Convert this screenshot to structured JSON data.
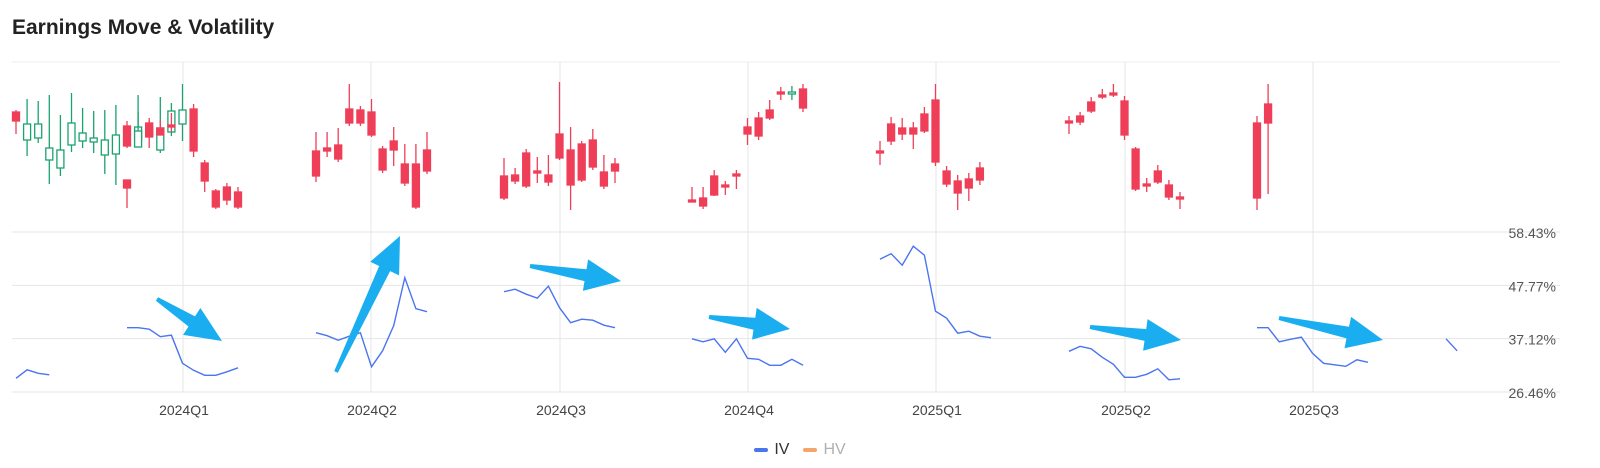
{
  "title": "Earnings Move & Volatility",
  "colors": {
    "up": "#1aa36f",
    "down": "#ef3e57",
    "iv": "#4a74f0",
    "hv": "#f3a56b",
    "arrow": "#1aaef0"
  },
  "legend": [
    {
      "label": "IV",
      "color": "#4a74f0",
      "active": true
    },
    {
      "label": "HV",
      "color": "#f3a56b",
      "active": false
    }
  ],
  "chart_data": {
    "type": "line",
    "title": "Earnings Move & Volatility",
    "quarters": [
      "2024Q1",
      "2024Q2",
      "2024Q3",
      "2024Q4",
      "2025Q1",
      "2025Q2",
      "2025Q3"
    ],
    "y_ticks": [
      "58.43%",
      "47.77%",
      "37.12%",
      "26.46%"
    ],
    "ylim": [
      26.46,
      58.43
    ],
    "series": [
      {
        "name": "IV",
        "segments": [
          [
            29.2,
            30.9,
            30.2,
            29.9
          ],
          [
            39.3,
            39.3,
            39.0,
            37.5,
            37.8,
            32.2,
            30.8,
            29.8,
            29.8,
            30.5,
            31.3
          ],
          [
            38.3,
            37.7,
            36.8,
            37.6,
            38.3,
            31.5,
            34.7,
            39.7,
            49.3,
            43.1,
            42.5
          ],
          [
            46.5,
            47.0,
            46.0,
            45.2,
            47.6,
            43.3,
            40.3,
            41.0,
            40.8,
            39.8,
            39.3
          ],
          [
            37.1,
            36.5,
            37.1,
            34.4,
            37.1,
            33.2,
            33.0,
            31.8,
            31.8,
            33.0,
            31.8
          ],
          [
            53.0,
            54.1,
            51.8,
            55.6,
            53.8,
            42.6,
            41.2,
            38.2,
            38.6,
            37.6,
            37.3
          ],
          [
            34.6,
            35.6,
            35.1,
            33.4,
            32.0,
            29.4,
            29.4,
            30.0,
            31.1,
            28.9,
            29.1
          ],
          [
            39.3,
            39.3,
            36.5,
            37.0,
            37.4,
            34.2,
            32.2,
            31.9,
            31.6,
            32.9,
            32.4
          ],
          [
            37.1,
            34.7
          ]
        ]
      }
    ],
    "candles": [
      [
        {
          "o": 112,
          "c": 121,
          "h": 110,
          "l": 134
        },
        {
          "o": 140,
          "c": 124,
          "h": 99,
          "l": 156
        },
        {
          "o": 138,
          "c": 124,
          "h": 101,
          "l": 143
        },
        {
          "o": 160,
          "c": 148,
          "h": 95,
          "l": 184
        },
        {
          "o": 168,
          "c": 150,
          "h": 115,
          "l": 176
        },
        {
          "o": 145,
          "c": 123,
          "h": 93,
          "l": 152
        },
        {
          "o": 141,
          "c": 133,
          "h": 108,
          "l": 148
        },
        {
          "o": 142,
          "c": 138,
          "h": 111,
          "l": 153
        },
        {
          "o": 155,
          "c": 140,
          "h": 110,
          "l": 174
        },
        {
          "o": 154,
          "c": 135,
          "h": 105,
          "l": 185
        },
        {
          "o": 180,
          "c": 188,
          "h": 182,
          "l": 208
        },
        {
          "o": 140,
          "c": 127,
          "h": 95,
          "l": 142
        },
        {
          "o": 127,
          "c": 137,
          "h": 118,
          "l": 148
        },
        {
          "o": 150,
          "c": 128,
          "h": 97,
          "l": 153
        },
        {
          "o": 132,
          "c": 111,
          "h": 103,
          "l": 136
        }
      ],
      [
        {
          "o": 126,
          "c": 146,
          "h": 121,
          "l": 148
        },
        {
          "o": 147,
          "c": 131,
          "h": 112,
          "l": 147
        },
        {
          "o": 123,
          "c": 135,
          "h": 120,
          "l": 137
        },
        {
          "o": 128,
          "c": 135,
          "h": 120,
          "l": 131
        },
        {
          "o": 125,
          "c": 127,
          "h": 113,
          "l": 132
        },
        {
          "o": 124,
          "c": 110,
          "h": 84,
          "l": 141
        },
        {
          "o": 109,
          "c": 151,
          "h": 104,
          "l": 157
        },
        {
          "o": 163,
          "c": 181,
          "h": 160,
          "l": 192
        },
        {
          "o": 191,
          "c": 207,
          "h": 189,
          "l": 209
        },
        {
          "o": 187,
          "c": 200,
          "h": 183,
          "l": 205
        },
        {
          "o": 192,
          "c": 207,
          "h": 187,
          "l": 209
        }
      ],
      [
        {
          "o": 151,
          "c": 176,
          "h": 132,
          "l": 182
        },
        {
          "o": 148,
          "c": 151,
          "h": 132,
          "l": 157
        },
        {
          "o": 145,
          "c": 159,
          "h": 128,
          "l": 162
        },
        {
          "o": 109,
          "c": 123,
          "h": 84,
          "l": 126
        },
        {
          "o": 110,
          "c": 123,
          "h": 106,
          "l": 126
        },
        {
          "o": 112,
          "c": 135,
          "h": 99,
          "l": 137
        },
        {
          "o": 149,
          "c": 170,
          "h": 146,
          "l": 173
        },
        {
          "o": 141,
          "c": 150,
          "h": 127,
          "l": 166
        },
        {
          "o": 164,
          "c": 183,
          "h": 144,
          "l": 186
        },
        {
          "o": 164,
          "c": 207,
          "h": 144,
          "l": 209
        },
        {
          "o": 150,
          "c": 171,
          "h": 132,
          "l": 174
        }
      ],
      [
        {
          "o": 176,
          "c": 198,
          "h": 158,
          "l": 200
        },
        {
          "o": 175,
          "c": 181,
          "h": 168,
          "l": 184
        },
        {
          "o": 153,
          "c": 186,
          "h": 149,
          "l": 188
        },
        {
          "o": 171,
          "c": 171,
          "h": 157,
          "l": 183
        },
        {
          "o": 175,
          "c": 182,
          "h": 155,
          "l": 186
        },
        {
          "o": 134,
          "c": 158,
          "h": 82,
          "l": 160
        },
        {
          "o": 150,
          "c": 185,
          "h": 127,
          "l": 210
        },
        {
          "o": 144,
          "c": 180,
          "h": 141,
          "l": 182
        },
        {
          "o": 140,
          "c": 167,
          "h": 129,
          "l": 170
        },
        {
          "o": 172,
          "c": 186,
          "h": 155,
          "l": 189
        },
        {
          "o": 164,
          "c": 171,
          "h": 158,
          "l": 183
        }
      ],
      [
        {
          "o": 200,
          "c": 200,
          "h": 187,
          "l": 202
        },
        {
          "o": 198,
          "c": 206,
          "h": 187,
          "l": 209
        },
        {
          "o": 176,
          "c": 195,
          "h": 170,
          "l": 196
        },
        {
          "o": 185,
          "c": 185,
          "h": 181,
          "l": 195
        },
        {
          "o": 174,
          "c": 174,
          "h": 170,
          "l": 189
        },
        {
          "o": 127,
          "c": 134,
          "h": 118,
          "l": 145
        },
        {
          "o": 118,
          "c": 136,
          "h": 112,
          "l": 140
        },
        {
          "o": 110,
          "c": 118,
          "h": 100,
          "l": 120
        },
        {
          "o": 92,
          "c": 92,
          "h": 87,
          "l": 100
        },
        {
          "o": 93,
          "c": 92,
          "h": 86,
          "l": 100
        },
        {
          "o": 89,
          "c": 108,
          "h": 84,
          "l": 112
        }
      ],
      [
        {
          "o": 151,
          "c": 151,
          "h": 141,
          "l": 165
        },
        {
          "o": 124,
          "c": 141,
          "h": 117,
          "l": 145
        },
        {
          "o": 128,
          "c": 134,
          "h": 118,
          "l": 140
        },
        {
          "o": 128,
          "c": 134,
          "h": 122,
          "l": 149
        },
        {
          "o": 114,
          "c": 131,
          "h": 107,
          "l": 133
        },
        {
          "o": 100,
          "c": 162,
          "h": 84,
          "l": 166
        },
        {
          "o": 171,
          "c": 184,
          "h": 166,
          "l": 187
        },
        {
          "o": 181,
          "c": 193,
          "h": 175,
          "l": 210
        },
        {
          "o": 179,
          "c": 188,
          "h": 173,
          "l": 201
        },
        {
          "o": 168,
          "c": 180,
          "h": 162,
          "l": 185
        }
      ],
      [
        {
          "o": 121,
          "c": 121,
          "h": 116,
          "l": 134
        },
        {
          "o": 116,
          "c": 122,
          "h": 112,
          "l": 125
        },
        {
          "o": 102,
          "c": 111,
          "h": 97,
          "l": 113
        },
        {
          "o": 95,
          "c": 95,
          "h": 89,
          "l": 99
        },
        {
          "o": 93,
          "c": 93,
          "h": 84,
          "l": 97
        },
        {
          "o": 101,
          "c": 135,
          "h": 96,
          "l": 140
        },
        {
          "o": 149,
          "c": 189,
          "h": 147,
          "l": 191
        },
        {
          "o": 184,
          "c": 184,
          "h": 178,
          "l": 192
        },
        {
          "o": 171,
          "c": 182,
          "h": 165,
          "l": 184
        },
        {
          "o": 185,
          "c": 197,
          "h": 180,
          "l": 200
        },
        {
          "o": 197,
          "c": 199,
          "h": 192,
          "l": 209
        }
      ],
      [
        {
          "o": 123,
          "c": 198,
          "h": 116,
          "l": 210
        },
        {
          "o": 104,
          "c": 123,
          "h": 84,
          "l": 194
        }
      ]
    ]
  }
}
